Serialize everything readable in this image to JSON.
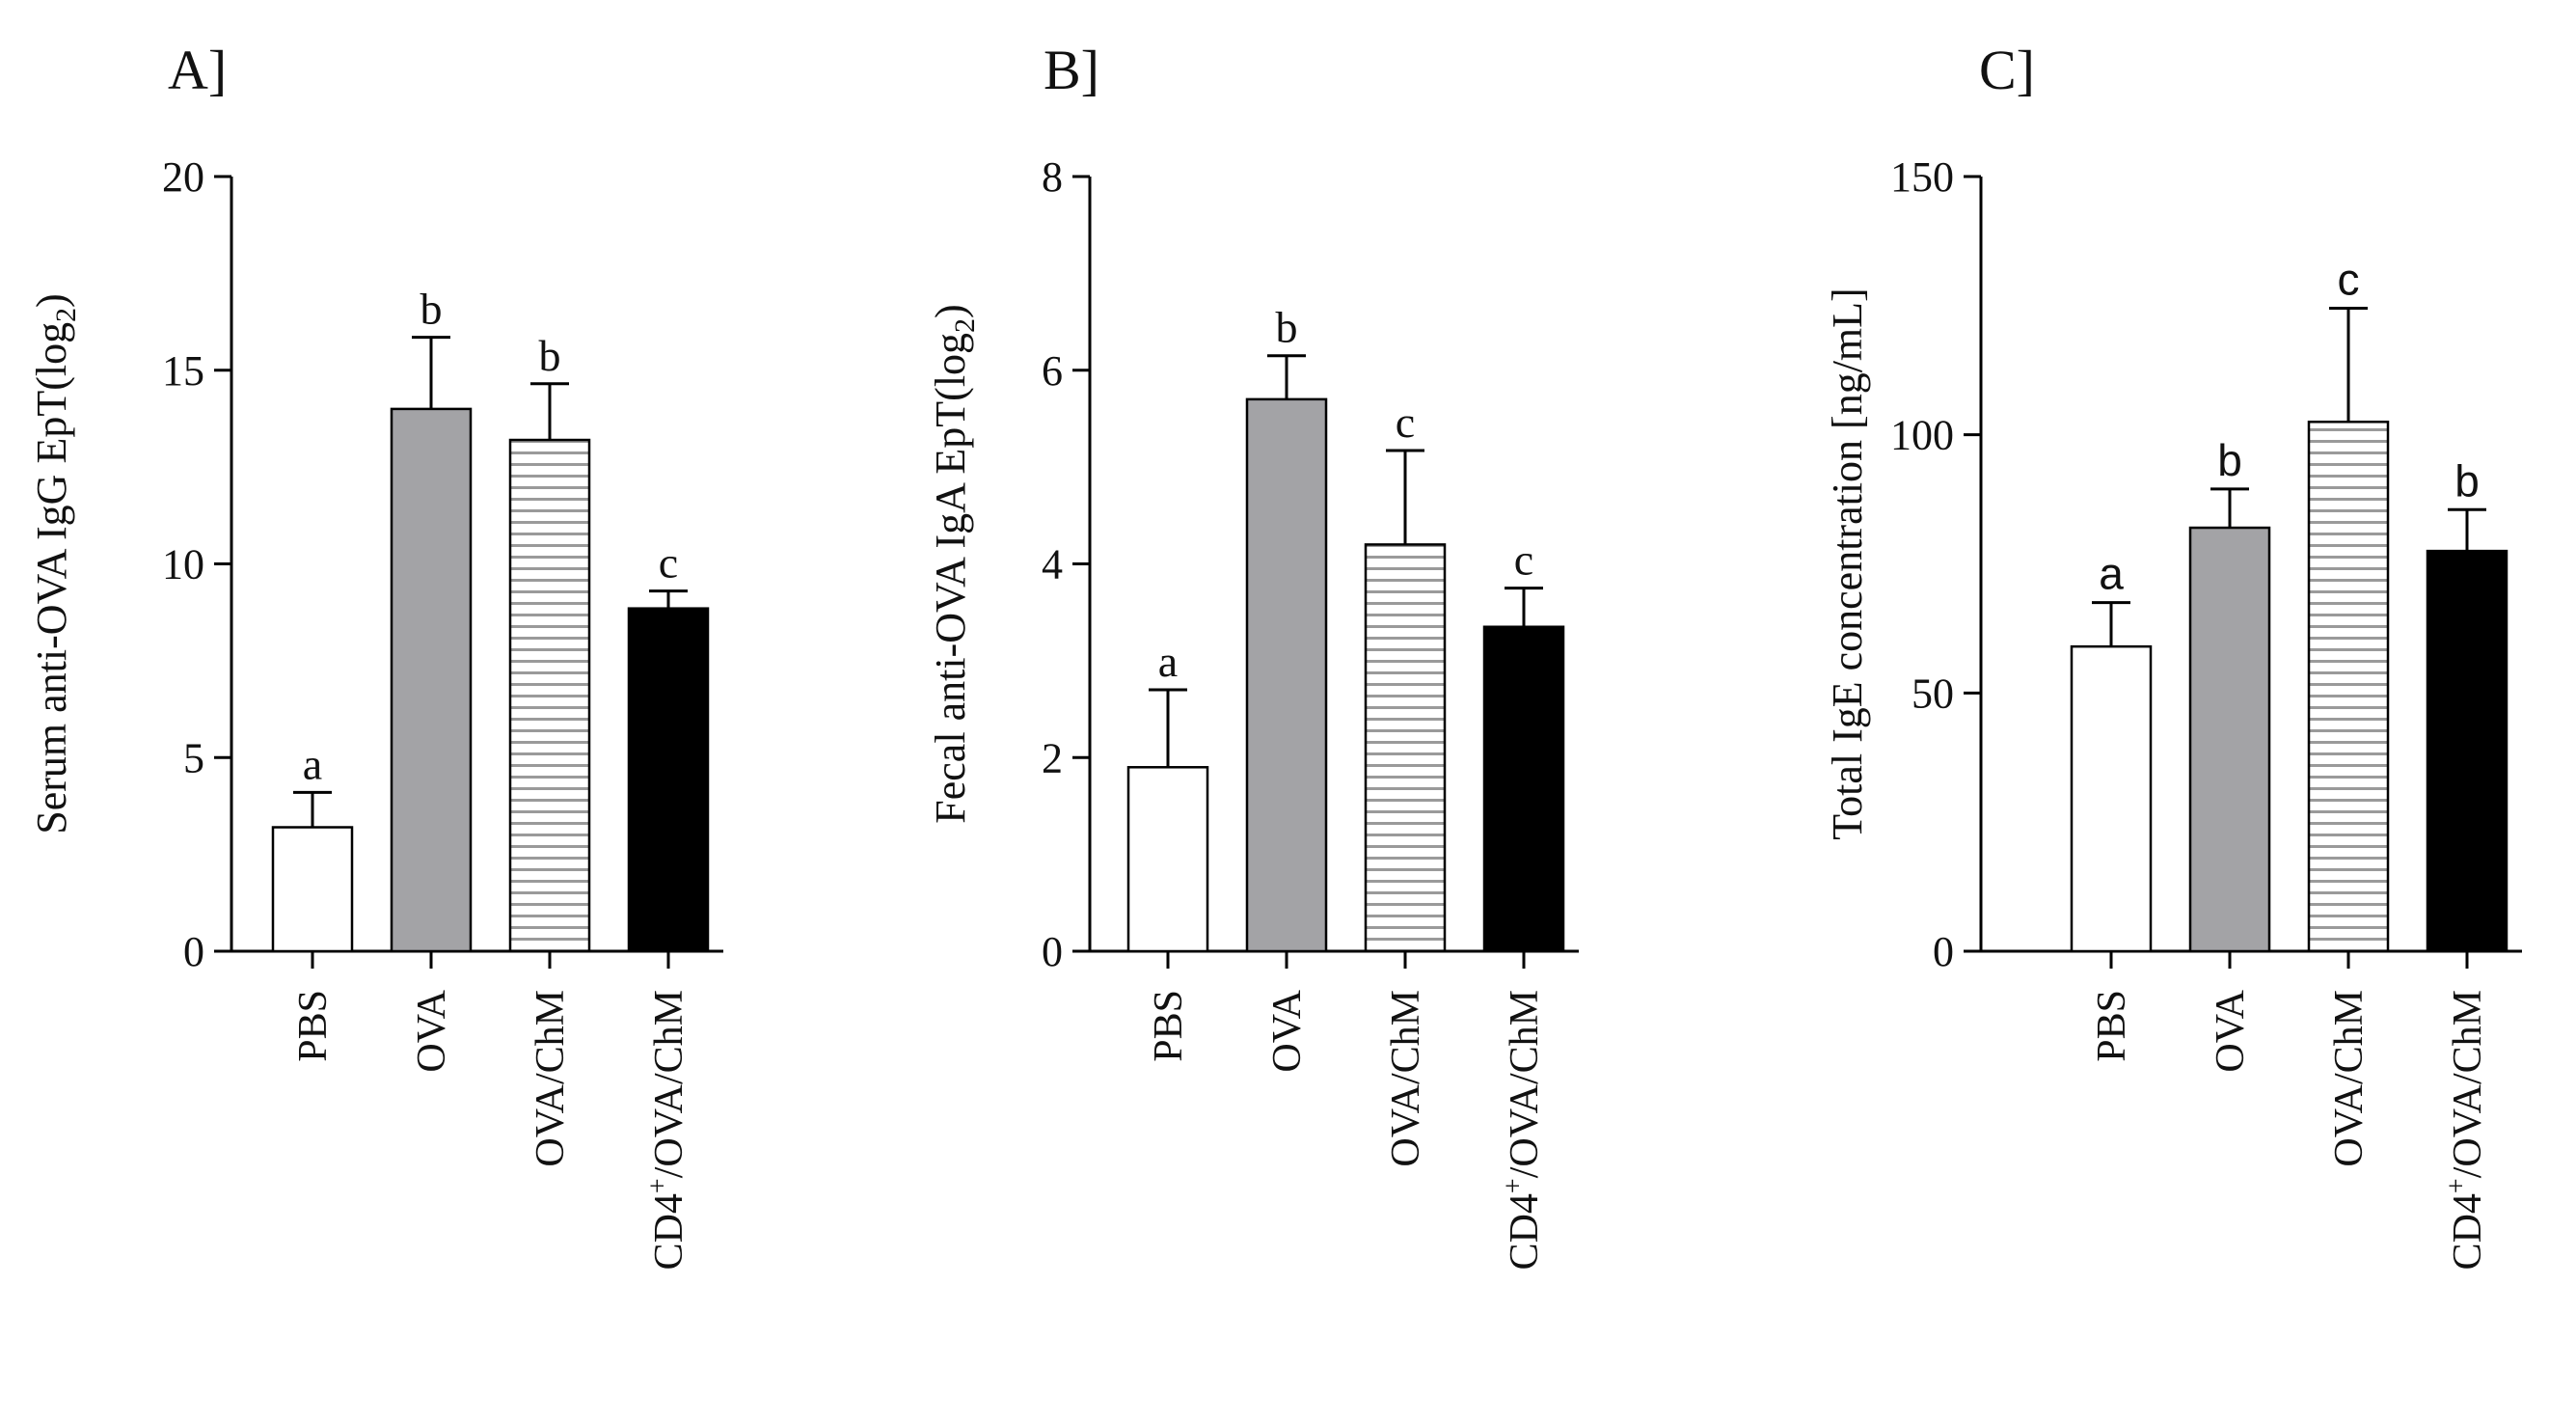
{
  "chart_data": [
    {
      "type": "bar",
      "panel_label": "A]",
      "ylabel_main": "Serum anti-OVA IgG  EpT(log",
      "ylabel_sub": "2",
      "ylabel_close": ")",
      "categories": [
        {
          "label": "PBS",
          "sup": ""
        },
        {
          "label": "OVA",
          "sup": ""
        },
        {
          "label": "OVA/ChM",
          "sup": ""
        },
        {
          "label": "CD4",
          "sup": "+",
          "rest": "/OVA/ChM"
        }
      ],
      "values": [
        3.2,
        14.0,
        13.2,
        8.85
      ],
      "errors": [
        0.9,
        1.85,
        1.45,
        0.45
      ],
      "letters": [
        "a",
        "b",
        "b",
        "c"
      ],
      "letter_font": "serif",
      "ylim": [
        0,
        20
      ],
      "yticks": [
        0,
        5,
        10,
        15,
        20
      ],
      "ytick_labels": [
        "0",
        "5",
        "10",
        "15",
        "20"
      ]
    },
    {
      "type": "bar",
      "panel_label": "B]",
      "ylabel_main": "Fecal anti-OVA IgA  EpT(log",
      "ylabel_sub": "2",
      "ylabel_close": ")",
      "categories": [
        {
          "label": "PBS",
          "sup": ""
        },
        {
          "label": "OVA",
          "sup": ""
        },
        {
          "label": "OVA/ChM",
          "sup": ""
        },
        {
          "label": "CD4",
          "sup": "+",
          "rest": "/OVA/ChM"
        }
      ],
      "values": [
        1.9,
        5.7,
        4.2,
        3.35
      ],
      "errors": [
        0.8,
        0.45,
        0.97,
        0.4
      ],
      "letters": [
        "a",
        "b",
        "c",
        "c"
      ],
      "letter_font": "serif",
      "ylim": [
        0,
        8
      ],
      "yticks": [
        0,
        2,
        4,
        6,
        8
      ],
      "ytick_labels": [
        "0",
        "2",
        "4",
        "6",
        "8"
      ]
    },
    {
      "type": "bar",
      "panel_label": "C]",
      "ylabel_main": "Total IgE concentration [ng/mL]",
      "ylabel_sub": "",
      "ylabel_close": "",
      "categories": [
        {
          "label": "PBS",
          "sup": ""
        },
        {
          "label": "OVA",
          "sup": ""
        },
        {
          "label": "OVA/ChM",
          "sup": ""
        },
        {
          "label": "CD4",
          "sup": "+",
          "rest": "/OVA/ChM"
        }
      ],
      "values": [
        59,
        82,
        102.5,
        77.5
      ],
      "errors": [
        8.5,
        7.5,
        22,
        8
      ],
      "letters": [
        "a",
        "b",
        "c",
        "b"
      ],
      "letter_font": "sans",
      "ylim": [
        0,
        150
      ],
      "yticks": [
        0,
        50,
        100,
        150
      ],
      "ytick_labels": [
        "0",
        "50",
        "100",
        "150"
      ]
    }
  ],
  "styles": {
    "fills": [
      "#ffffff",
      "#a3a3a6",
      "hatch",
      "#000000"
    ],
    "hatch_color": "#9a9a9a",
    "axis_color": "#000000"
  }
}
